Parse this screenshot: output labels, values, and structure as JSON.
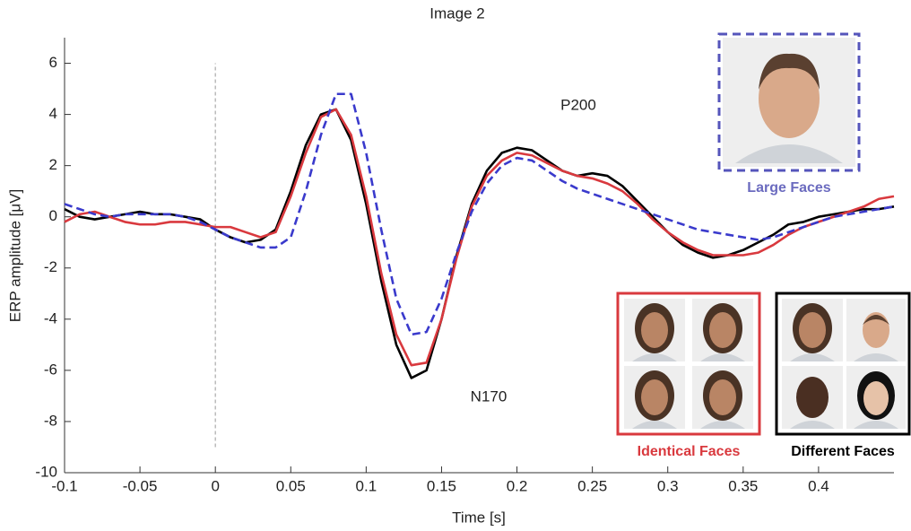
{
  "chart_data": {
    "type": "line",
    "title": "Image 2",
    "x_label": "Time [s]",
    "y_label": "ERP amplitude [μV]",
    "x": [
      -0.1,
      -0.09,
      -0.08,
      -0.07,
      -0.06,
      -0.05,
      -0.04,
      -0.03,
      -0.02,
      -0.01,
      0,
      0.01,
      0.02,
      0.03,
      0.04,
      0.05,
      0.06,
      0.07,
      0.08,
      0.09,
      0.1,
      0.11,
      0.12,
      0.13,
      0.14,
      0.15,
      0.16,
      0.17,
      0.18,
      0.19,
      0.2,
      0.21,
      0.22,
      0.23,
      0.24,
      0.25,
      0.26,
      0.27,
      0.28,
      0.29,
      0.3,
      0.31,
      0.32,
      0.33,
      0.34,
      0.35,
      0.36,
      0.37,
      0.38,
      0.39,
      0.4,
      0.41,
      0.42,
      0.43,
      0.44,
      0.45
    ],
    "series": [
      {
        "name": "Different Faces",
        "color": "#000000",
        "dashed": false,
        "values": [
          0.3,
          0.0,
          -0.1,
          0.0,
          0.1,
          0.2,
          0.1,
          0.1,
          0.0,
          -0.1,
          -0.5,
          -0.8,
          -1.0,
          -0.9,
          -0.5,
          1.0,
          2.8,
          4.0,
          4.2,
          3.0,
          0.5,
          -2.5,
          -5.0,
          -6.3,
          -6.0,
          -4.0,
          -1.5,
          0.5,
          1.8,
          2.5,
          2.7,
          2.6,
          2.2,
          1.8,
          1.6,
          1.7,
          1.6,
          1.2,
          0.6,
          0.0,
          -0.6,
          -1.1,
          -1.4,
          -1.6,
          -1.5,
          -1.3,
          -1.0,
          -0.7,
          -0.3,
          -0.2,
          0.0,
          0.1,
          0.2,
          0.3,
          0.3,
          0.4
        ]
      },
      {
        "name": "Identical Faces",
        "color": "#d9393e",
        "dashed": false,
        "values": [
          -0.2,
          0.1,
          0.2,
          0.0,
          -0.2,
          -0.3,
          -0.3,
          -0.2,
          -0.2,
          -0.3,
          -0.4,
          -0.4,
          -0.6,
          -0.8,
          -0.6,
          0.8,
          2.5,
          3.9,
          4.2,
          3.2,
          0.8,
          -2.2,
          -4.6,
          -5.8,
          -5.7,
          -4.0,
          -1.6,
          0.4,
          1.6,
          2.2,
          2.5,
          2.4,
          2.1,
          1.8,
          1.6,
          1.5,
          1.3,
          1.0,
          0.5,
          -0.1,
          -0.6,
          -1.0,
          -1.3,
          -1.5,
          -1.5,
          -1.5,
          -1.4,
          -1.1,
          -0.7,
          -0.4,
          -0.2,
          0.0,
          0.2,
          0.4,
          0.7,
          0.8
        ]
      },
      {
        "name": "Large Faces",
        "color": "#3a3acc",
        "dashed": true,
        "values": [
          0.5,
          0.3,
          0.1,
          0.0,
          0.1,
          0.1,
          0.1,
          0.1,
          0.0,
          -0.2,
          -0.5,
          -0.8,
          -1.0,
          -1.2,
          -1.2,
          -0.8,
          1.0,
          3.2,
          4.8,
          4.8,
          2.5,
          -0.5,
          -3.2,
          -4.6,
          -4.5,
          -3.2,
          -1.4,
          0.2,
          1.3,
          2.0,
          2.3,
          2.2,
          1.8,
          1.4,
          1.1,
          0.9,
          0.7,
          0.5,
          0.3,
          0.1,
          -0.1,
          -0.3,
          -0.5,
          -0.6,
          -0.7,
          -0.8,
          -0.9,
          -0.8,
          -0.6,
          -0.4,
          -0.2,
          0.0,
          0.1,
          0.2,
          0.3,
          0.4
        ]
      }
    ],
    "xlim": [
      -0.1,
      0.45
    ],
    "ylim": [
      -10,
      7
    ],
    "xticks": [
      -0.1,
      -0.05,
      0,
      0.05,
      0.1,
      0.15,
      0.2,
      0.25,
      0.3,
      0.35,
      0.4
    ],
    "yticks": [
      -10,
      -8,
      -6,
      -4,
      -2,
      0,
      2,
      4,
      6
    ],
    "reference_line": {
      "x": 0,
      "ymin": -9,
      "ymax": 6,
      "color": "#aaaaaa"
    },
    "annotations": [
      "P200",
      "N170"
    ]
  }
}
